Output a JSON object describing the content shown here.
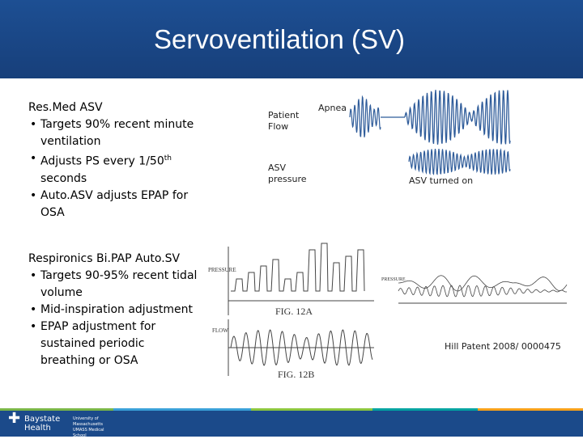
{
  "header": {
    "title": "Servoventilation (SV)"
  },
  "sections": [
    {
      "heading": "Res.Med ASV",
      "bullets": [
        {
          "text": "Targets 90% recent minute ventilation"
        },
        {
          "text": "Adjusts PS every 1/50",
          "sup": "th",
          "after": " seconds"
        },
        {
          "text": "Auto.ASV adjusts EPAP for OSA"
        }
      ]
    },
    {
      "heading": "Respironics Bi.PAP Auto.SV",
      "bullets": [
        {
          "text": "Targets 90-95% recent tidal volume"
        },
        {
          "text": "Mid-inspiration adjustment"
        },
        {
          "text": "EPAP adjustment for sustained periodic breathing or OSA"
        }
      ]
    }
  ],
  "figure": {
    "patient_flow": "Patient Flow",
    "asv_pressure": "ASV pressure",
    "apnea": "Apnea",
    "asv_turned_on": "ASV turned on"
  },
  "patent": {
    "pressure": "PRESSURE",
    "flow": "FLOW",
    "fig_a": "FIG. 12A",
    "fig_b": "FIG. 12B",
    "caption": "Hill Patent 2008/ 0000475"
  },
  "footer": {
    "logo1": "Baystate",
    "logo1b": "Health",
    "logo2": "University of Massachusetts",
    "logo2b": "UMASS Medical School"
  }
}
